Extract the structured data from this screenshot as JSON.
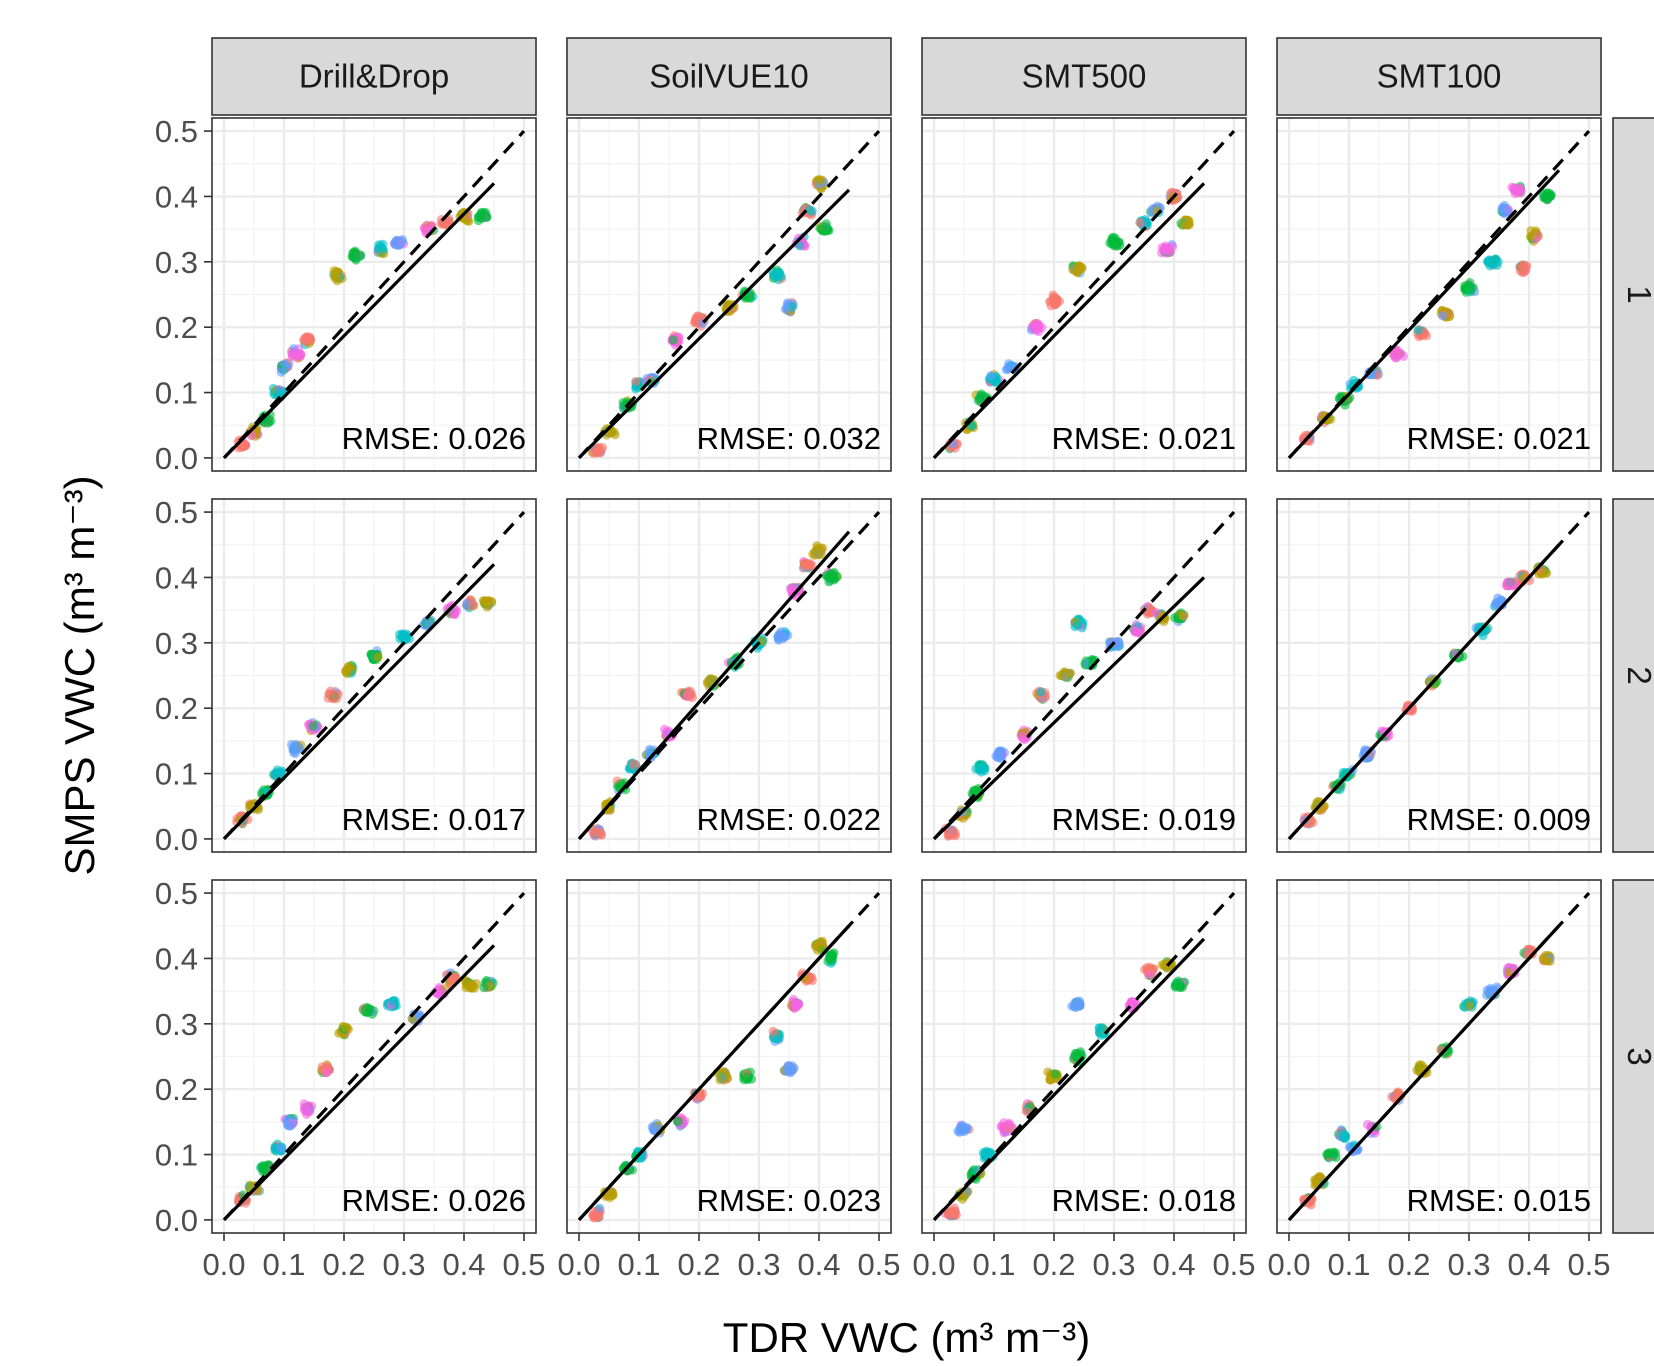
{
  "chart_data": {
    "type": "scatter",
    "layout": "facet grid: 3 rows x 4 columns",
    "xlabel": "TDR VWC",
    "xlabel_unit": "(m³ m⁻³)",
    "ylabel": "SMPS VWC",
    "ylabel_unit": "(m³ m⁻³)",
    "xlim": [
      -0.02,
      0.52
    ],
    "ylim": [
      -0.02,
      0.52
    ],
    "x_ticks": [
      "0.0",
      "0.1",
      "0.2",
      "0.3",
      "0.4",
      "0.5"
    ],
    "y_ticks": [
      "0.0",
      "0.1",
      "0.2",
      "0.3",
      "0.4",
      "0.5"
    ],
    "grid": true,
    "columns": [
      "Drill&Drop",
      "SoilVUE10",
      "SMT500",
      "SMT100"
    ],
    "rows": [
      "1",
      "2",
      "3"
    ],
    "reference_line": {
      "style": "dashed",
      "slope": 1,
      "intercept": 0
    },
    "series_colors": [
      "#F8766D",
      "#B79F00",
      "#00BA38",
      "#00BFC4",
      "#619CFF",
      "#F564E3"
    ],
    "panels": [
      {
        "row": "1",
        "column": "Drill&Drop",
        "rmse": "RMSE: 0.026",
        "fit": [
          [
            0.0,
            0.0
          ],
          [
            0.45,
            0.42
          ]
        ],
        "clusters": [
          [
            0.03,
            0.02
          ],
          [
            0.05,
            0.04
          ],
          [
            0.07,
            0.06
          ],
          [
            0.09,
            0.1
          ],
          [
            0.1,
            0.14
          ],
          [
            0.12,
            0.16
          ],
          [
            0.14,
            0.18
          ],
          [
            0.19,
            0.28
          ],
          [
            0.22,
            0.31
          ],
          [
            0.26,
            0.32
          ],
          [
            0.29,
            0.33
          ],
          [
            0.34,
            0.35
          ],
          [
            0.37,
            0.36
          ],
          [
            0.4,
            0.37
          ],
          [
            0.43,
            0.37
          ]
        ]
      },
      {
        "row": "1",
        "column": "SoilVUE10",
        "rmse": "RMSE: 0.032",
        "fit": [
          [
            0.0,
            0.0
          ],
          [
            0.45,
            0.41
          ]
        ],
        "clusters": [
          [
            0.03,
            0.01
          ],
          [
            0.05,
            0.04
          ],
          [
            0.08,
            0.08
          ],
          [
            0.1,
            0.11
          ],
          [
            0.12,
            0.12
          ],
          [
            0.16,
            0.18
          ],
          [
            0.2,
            0.21
          ],
          [
            0.25,
            0.23
          ],
          [
            0.28,
            0.25
          ],
          [
            0.33,
            0.28
          ],
          [
            0.35,
            0.23
          ],
          [
            0.37,
            0.33
          ],
          [
            0.38,
            0.38
          ],
          [
            0.4,
            0.42
          ],
          [
            0.41,
            0.35
          ]
        ]
      },
      {
        "row": "1",
        "column": "SMT500",
        "rmse": "RMSE: 0.021",
        "fit": [
          [
            0.0,
            0.0
          ],
          [
            0.45,
            0.42
          ]
        ],
        "clusters": [
          [
            0.03,
            0.02
          ],
          [
            0.06,
            0.05
          ],
          [
            0.08,
            0.09
          ],
          [
            0.1,
            0.12
          ],
          [
            0.13,
            0.14
          ],
          [
            0.17,
            0.2
          ],
          [
            0.2,
            0.24
          ],
          [
            0.24,
            0.29
          ],
          [
            0.3,
            0.33
          ],
          [
            0.35,
            0.36
          ],
          [
            0.37,
            0.38
          ],
          [
            0.39,
            0.32
          ],
          [
            0.4,
            0.4
          ],
          [
            0.42,
            0.36
          ]
        ]
      },
      {
        "row": "1",
        "column": "SMT100",
        "rmse": "RMSE: 0.021",
        "fit": [
          [
            0.0,
            0.0
          ],
          [
            0.45,
            0.44
          ]
        ],
        "clusters": [
          [
            0.03,
            0.03
          ],
          [
            0.06,
            0.06
          ],
          [
            0.09,
            0.09
          ],
          [
            0.11,
            0.11
          ],
          [
            0.14,
            0.13
          ],
          [
            0.18,
            0.16
          ],
          [
            0.22,
            0.19
          ],
          [
            0.26,
            0.22
          ],
          [
            0.3,
            0.26
          ],
          [
            0.34,
            0.3
          ],
          [
            0.36,
            0.38
          ],
          [
            0.38,
            0.41
          ],
          [
            0.39,
            0.29
          ],
          [
            0.41,
            0.34
          ],
          [
            0.43,
            0.4
          ]
        ]
      },
      {
        "row": "2",
        "column": "Drill&Drop",
        "rmse": "RMSE: 0.017",
        "fit": [
          [
            0.0,
            0.0
          ],
          [
            0.45,
            0.42
          ]
        ],
        "clusters": [
          [
            0.03,
            0.03
          ],
          [
            0.05,
            0.05
          ],
          [
            0.07,
            0.07
          ],
          [
            0.09,
            0.1
          ],
          [
            0.12,
            0.14
          ],
          [
            0.15,
            0.17
          ],
          [
            0.18,
            0.22
          ],
          [
            0.21,
            0.26
          ],
          [
            0.25,
            0.28
          ],
          [
            0.3,
            0.31
          ],
          [
            0.34,
            0.33
          ],
          [
            0.38,
            0.35
          ],
          [
            0.41,
            0.36
          ],
          [
            0.44,
            0.36
          ]
        ]
      },
      {
        "row": "2",
        "column": "SoilVUE10",
        "rmse": "RMSE: 0.022",
        "fit": [
          [
            0.0,
            0.0
          ],
          [
            0.45,
            0.47
          ]
        ],
        "clusters": [
          [
            0.03,
            0.01
          ],
          [
            0.05,
            0.05
          ],
          [
            0.07,
            0.08
          ],
          [
            0.09,
            0.11
          ],
          [
            0.12,
            0.13
          ],
          [
            0.15,
            0.16
          ],
          [
            0.18,
            0.22
          ],
          [
            0.22,
            0.24
          ],
          [
            0.26,
            0.27
          ],
          [
            0.3,
            0.3
          ],
          [
            0.34,
            0.31
          ],
          [
            0.36,
            0.38
          ],
          [
            0.38,
            0.42
          ],
          [
            0.4,
            0.44
          ],
          [
            0.42,
            0.4
          ]
        ]
      },
      {
        "row": "2",
        "column": "SMT500",
        "rmse": "RMSE: 0.019",
        "fit": [
          [
            0.0,
            0.0
          ],
          [
            0.45,
            0.4
          ]
        ],
        "clusters": [
          [
            0.03,
            0.01
          ],
          [
            0.05,
            0.04
          ],
          [
            0.07,
            0.07
          ],
          [
            0.08,
            0.11
          ],
          [
            0.11,
            0.13
          ],
          [
            0.15,
            0.16
          ],
          [
            0.18,
            0.22
          ],
          [
            0.22,
            0.25
          ],
          [
            0.26,
            0.27
          ],
          [
            0.24,
            0.33
          ],
          [
            0.3,
            0.3
          ],
          [
            0.34,
            0.32
          ],
          [
            0.36,
            0.35
          ],
          [
            0.38,
            0.34
          ],
          [
            0.41,
            0.34
          ]
        ]
      },
      {
        "row": "2",
        "column": "SMT100",
        "rmse": "RMSE: 0.009",
        "fit": [
          [
            0.0,
            0.0
          ],
          [
            0.45,
            0.45
          ]
        ],
        "clusters": [
          [
            0.03,
            0.03
          ],
          [
            0.05,
            0.05
          ],
          [
            0.08,
            0.08
          ],
          [
            0.1,
            0.1
          ],
          [
            0.13,
            0.13
          ],
          [
            0.16,
            0.16
          ],
          [
            0.2,
            0.2
          ],
          [
            0.24,
            0.24
          ],
          [
            0.28,
            0.28
          ],
          [
            0.32,
            0.32
          ],
          [
            0.35,
            0.36
          ],
          [
            0.37,
            0.39
          ],
          [
            0.39,
            0.4
          ],
          [
            0.42,
            0.41
          ]
        ]
      },
      {
        "row": "3",
        "column": "Drill&Drop",
        "rmse": "RMSE: 0.026",
        "fit": [
          [
            0.0,
            0.0
          ],
          [
            0.45,
            0.42
          ]
        ],
        "clusters": [
          [
            0.03,
            0.03
          ],
          [
            0.05,
            0.05
          ],
          [
            0.07,
            0.08
          ],
          [
            0.09,
            0.11
          ],
          [
            0.11,
            0.15
          ],
          [
            0.14,
            0.17
          ],
          [
            0.17,
            0.23
          ],
          [
            0.2,
            0.29
          ],
          [
            0.24,
            0.32
          ],
          [
            0.28,
            0.33
          ],
          [
            0.32,
            0.31
          ],
          [
            0.36,
            0.35
          ],
          [
            0.38,
            0.37
          ],
          [
            0.41,
            0.36
          ],
          [
            0.44,
            0.36
          ]
        ]
      },
      {
        "row": "3",
        "column": "SoilVUE10",
        "rmse": "RMSE: 0.023",
        "fit": [
          [
            0.0,
            0.0
          ],
          [
            0.45,
            0.45
          ]
        ],
        "clusters": [
          [
            0.03,
            0.01
          ],
          [
            0.05,
            0.04
          ],
          [
            0.08,
            0.08
          ],
          [
            0.1,
            0.1
          ],
          [
            0.13,
            0.14
          ],
          [
            0.17,
            0.15
          ],
          [
            0.2,
            0.19
          ],
          [
            0.24,
            0.22
          ],
          [
            0.28,
            0.22
          ],
          [
            0.33,
            0.28
          ],
          [
            0.35,
            0.23
          ],
          [
            0.36,
            0.33
          ],
          [
            0.38,
            0.37
          ],
          [
            0.4,
            0.42
          ],
          [
            0.42,
            0.4
          ]
        ]
      },
      {
        "row": "3",
        "column": "SMT500",
        "rmse": "RMSE: 0.018",
        "fit": [
          [
            0.0,
            0.0
          ],
          [
            0.45,
            0.43
          ]
        ],
        "clusters": [
          [
            0.03,
            0.01
          ],
          [
            0.05,
            0.04
          ],
          [
            0.07,
            0.07
          ],
          [
            0.09,
            0.1
          ],
          [
            0.05,
            0.14
          ],
          [
            0.12,
            0.14
          ],
          [
            0.16,
            0.17
          ],
          [
            0.2,
            0.22
          ],
          [
            0.24,
            0.25
          ],
          [
            0.28,
            0.29
          ],
          [
            0.24,
            0.33
          ],
          [
            0.33,
            0.33
          ],
          [
            0.36,
            0.38
          ],
          [
            0.39,
            0.39
          ],
          [
            0.41,
            0.36
          ]
        ]
      },
      {
        "row": "3",
        "column": "SMT100",
        "rmse": "RMSE: 0.015",
        "fit": [
          [
            0.0,
            0.0
          ],
          [
            0.45,
            0.45
          ]
        ],
        "clusters": [
          [
            0.03,
            0.03
          ],
          [
            0.05,
            0.06
          ],
          [
            0.07,
            0.1
          ],
          [
            0.09,
            0.13
          ],
          [
            0.11,
            0.11
          ],
          [
            0.14,
            0.14
          ],
          [
            0.18,
            0.19
          ],
          [
            0.22,
            0.23
          ],
          [
            0.26,
            0.26
          ],
          [
            0.3,
            0.33
          ],
          [
            0.34,
            0.35
          ],
          [
            0.37,
            0.38
          ],
          [
            0.4,
            0.41
          ],
          [
            0.43,
            0.4
          ]
        ]
      }
    ]
  }
}
